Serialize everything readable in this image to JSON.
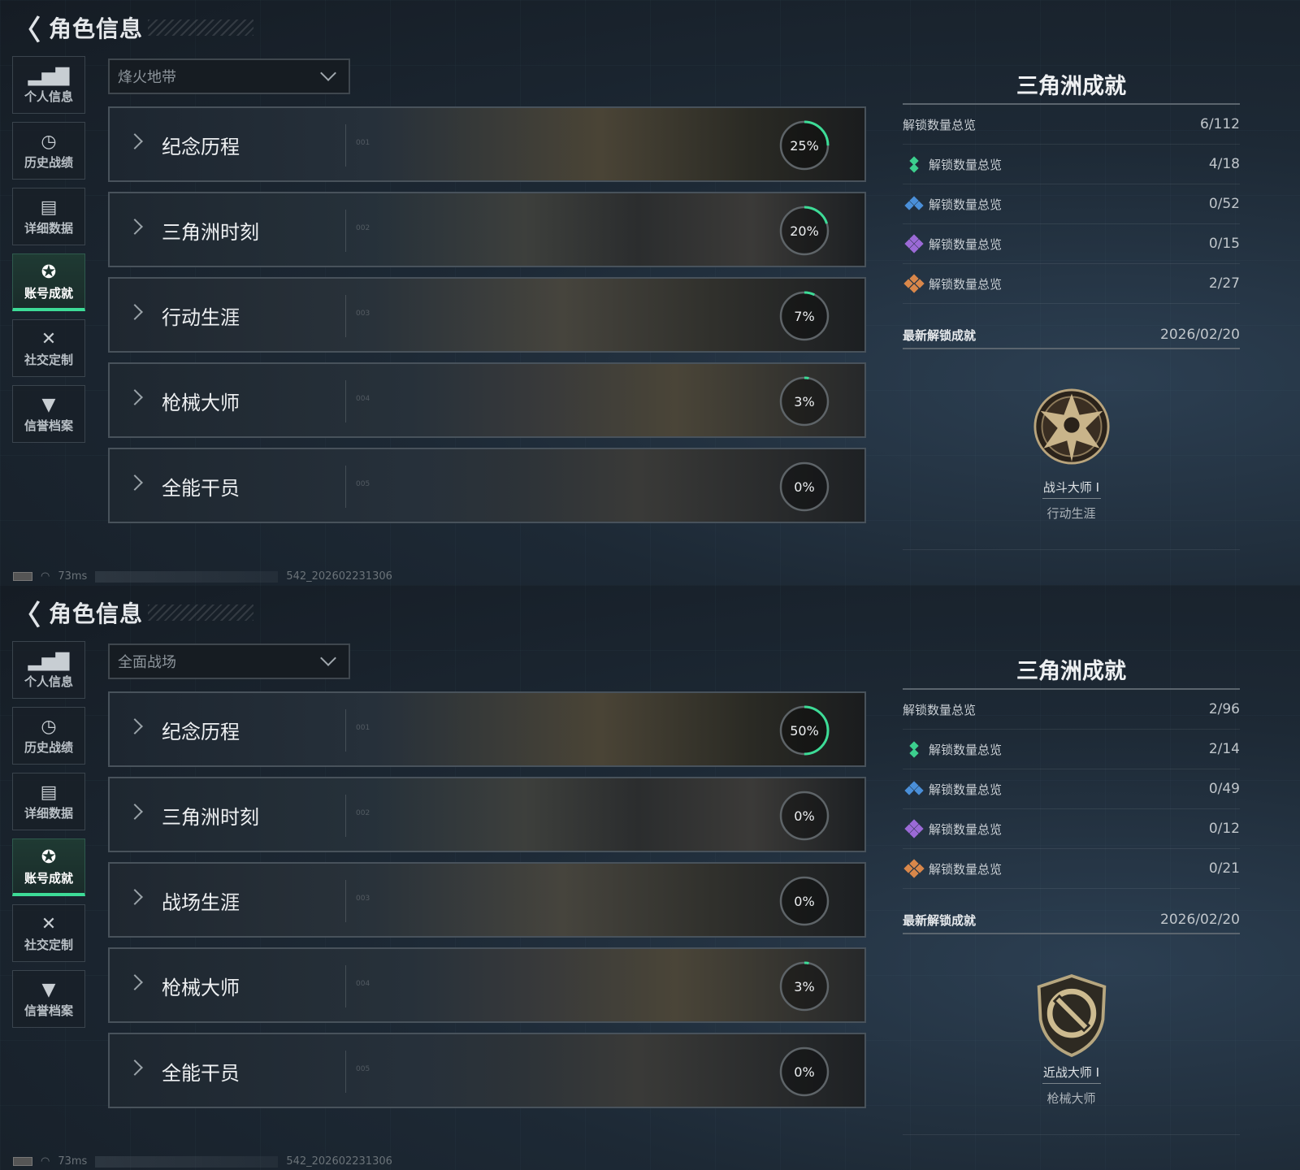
{
  "accent": "#3ddc97",
  "screens": [
    {
      "header": {
        "back_icon": "back-arrow-icon",
        "title": "角色信息"
      },
      "sidebar": [
        {
          "label": "个人信息",
          "icon": "bar-chart-icon"
        },
        {
          "label": "历史战绩",
          "icon": "history-clock-icon"
        },
        {
          "label": "详细数据",
          "icon": "folder-icon"
        },
        {
          "label": "账号成就",
          "icon": "medal-icon",
          "active": true
        },
        {
          "label": "社交定制",
          "icon": "tools-icon"
        },
        {
          "label": "信誉档案",
          "icon": "shield-icon"
        }
      ],
      "mode_select": {
        "value": "烽火地带"
      },
      "categories": [
        {
          "name": "纪念历程",
          "index": "001",
          "progress": "25%",
          "pct": 25
        },
        {
          "name": "三角洲时刻",
          "index": "002",
          "progress": "20%",
          "pct": 20
        },
        {
          "name": "行动生涯",
          "index": "003",
          "progress": "7%",
          "pct": 7
        },
        {
          "name": "枪械大师",
          "index": "004",
          "progress": "3%",
          "pct": 3
        },
        {
          "name": "全能干员",
          "index": "005",
          "progress": "0%",
          "pct": 0
        }
      ],
      "summary": {
        "title": "三角洲成就",
        "total": {
          "label": "解锁数量总览",
          "value": "6/112"
        },
        "tiers": [
          {
            "label": "解锁数量总览",
            "value": "4/18",
            "color": "#3ccf8e"
          },
          {
            "label": "解锁数量总览",
            "value": "0/52",
            "color": "#4a8fd8"
          },
          {
            "label": "解锁数量总览",
            "value": "0/15",
            "color": "#9b6ad6"
          },
          {
            "label": "解锁数量总览",
            "value": "2/27",
            "color": "#d9874a"
          }
        ],
        "latest_label": "最新解锁成就",
        "latest_date": "2026/02/20",
        "badge": {
          "name": "战斗大师 I",
          "category": "行动生涯",
          "shape": "star-medal"
        }
      },
      "status": {
        "ping": "73ms",
        "build": "542_202602231306"
      }
    },
    {
      "header": {
        "back_icon": "back-arrow-icon",
        "title": "角色信息"
      },
      "sidebar": [
        {
          "label": "个人信息",
          "icon": "bar-chart-icon"
        },
        {
          "label": "历史战绩",
          "icon": "history-clock-icon"
        },
        {
          "label": "详细数据",
          "icon": "folder-icon"
        },
        {
          "label": "账号成就",
          "icon": "medal-icon",
          "active": true
        },
        {
          "label": "社交定制",
          "icon": "tools-icon"
        },
        {
          "label": "信誉档案",
          "icon": "shield-icon"
        }
      ],
      "mode_select": {
        "value": "全面战场"
      },
      "categories": [
        {
          "name": "纪念历程",
          "index": "001",
          "progress": "50%",
          "pct": 50
        },
        {
          "name": "三角洲时刻",
          "index": "002",
          "progress": "0%",
          "pct": 0
        },
        {
          "name": "战场生涯",
          "index": "003",
          "progress": "0%",
          "pct": 0
        },
        {
          "name": "枪械大师",
          "index": "004",
          "progress": "3%",
          "pct": 3
        },
        {
          "name": "全能干员",
          "index": "005",
          "progress": "0%",
          "pct": 0
        }
      ],
      "summary": {
        "title": "三角洲成就",
        "total": {
          "label": "解锁数量总览",
          "value": "2/96"
        },
        "tiers": [
          {
            "label": "解锁数量总览",
            "value": "2/14",
            "color": "#3ccf8e"
          },
          {
            "label": "解锁数量总览",
            "value": "0/49",
            "color": "#4a8fd8"
          },
          {
            "label": "解锁数量总览",
            "value": "0/12",
            "color": "#9b6ad6"
          },
          {
            "label": "解锁数量总览",
            "value": "0/21",
            "color": "#d9874a"
          }
        ],
        "latest_label": "最新解锁成就",
        "latest_date": "2026/02/20",
        "badge": {
          "name": "近战大师 I",
          "category": "枪械大师",
          "shape": "knife-shield"
        }
      },
      "status": {
        "ping": "73ms",
        "build": "542_202602231306"
      }
    }
  ]
}
